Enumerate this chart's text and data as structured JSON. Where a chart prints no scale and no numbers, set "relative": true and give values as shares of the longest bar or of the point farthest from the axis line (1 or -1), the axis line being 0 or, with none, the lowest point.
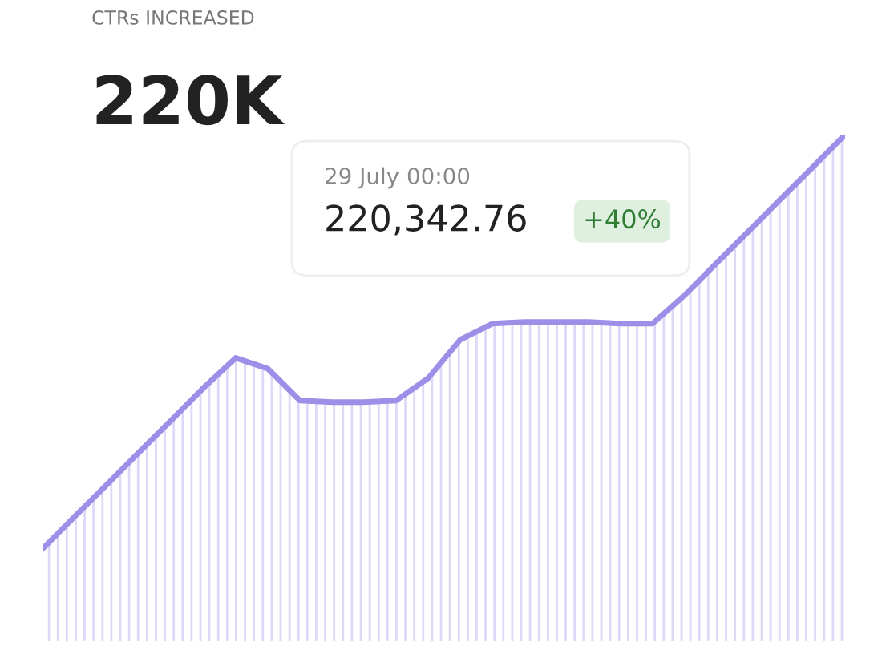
{
  "chart_data": {
    "type": "area",
    "title": "CTRs INCREASED",
    "subtitle": "220K",
    "relative": true,
    "categories": [
      null,
      null,
      null,
      null,
      null,
      null,
      null,
      null,
      null,
      null,
      null,
      null,
      null,
      null,
      null,
      null,
      null,
      null,
      null,
      null,
      null,
      null,
      null,
      null,
      null,
      null
    ],
    "series": [
      {
        "color": "#9d8fe8",
        "values": [
          0,
          0.078,
          0.155,
          0.233,
          0.31,
          0.388,
          0.46,
          0.434,
          0.357,
          0.353,
          0.353,
          0.357,
          0.411,
          0.504,
          0.543,
          0.547,
          0.547,
          0.547,
          0.543,
          0.543,
          0.612,
          0.69,
          0.767,
          0.845,
          0.922,
          1
        ]
      }
    ],
    "annotations": [
      "29 July 00:00",
      "220,342.76",
      "+40%"
    ],
    "marker": "none",
    "line_style": "solid"
  }
}
